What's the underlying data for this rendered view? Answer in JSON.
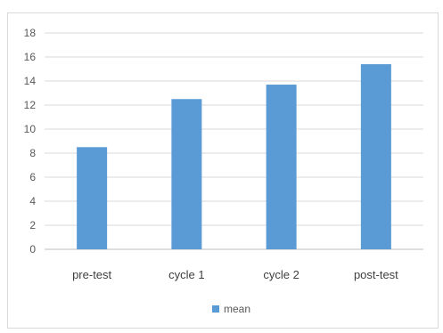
{
  "chart_data": {
    "type": "bar",
    "categories": [
      "pre-test",
      "cycle 1",
      "cycle 2",
      "post-test"
    ],
    "series": [
      {
        "name": "mean",
        "values": [
          8.5,
          12.5,
          13.7,
          15.4
        ]
      }
    ],
    "ylim": [
      0,
      18
    ],
    "yticks": [
      "0",
      "2",
      "4",
      "6",
      "8",
      "10",
      "12",
      "14",
      "16",
      "18"
    ],
    "grid": true,
    "legend_position": "bottom",
    "colors": {
      "bar": "#5b9bd5",
      "grid": "#d9d9d9",
      "axis": "#bfbfbf"
    }
  }
}
